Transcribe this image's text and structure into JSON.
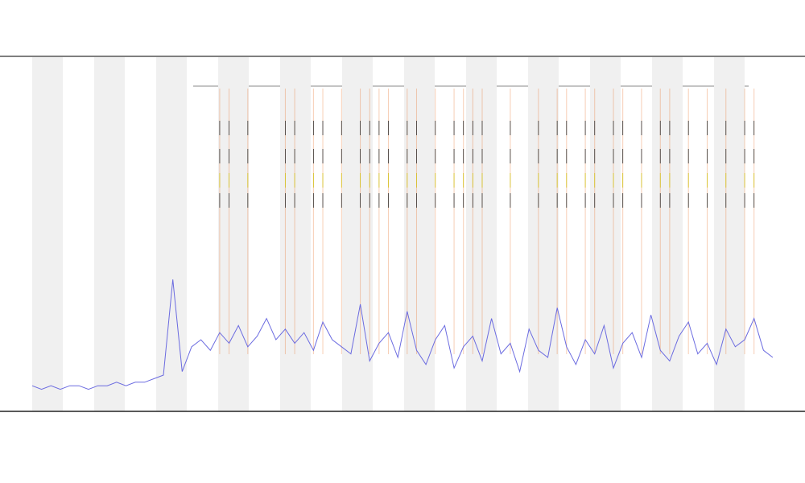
{
  "chart_data": {
    "type": "line",
    "x": [
      0,
      1,
      2,
      3,
      4,
      5,
      6,
      7,
      8,
      9,
      10,
      11,
      12,
      13,
      14,
      15,
      16,
      17,
      18,
      19,
      20,
      21,
      22,
      23,
      24,
      25,
      26,
      27,
      28,
      29,
      30,
      31,
      32,
      33,
      34,
      35,
      36,
      37,
      38,
      39,
      40,
      41,
      42,
      43,
      44,
      45,
      46,
      47,
      48,
      49,
      50,
      51,
      52,
      53,
      54,
      55,
      56,
      57,
      58,
      59,
      60,
      61,
      62,
      63,
      64,
      65,
      66,
      67,
      68,
      69,
      70,
      71,
      72,
      73,
      74,
      75,
      76,
      77,
      78,
      79
    ],
    "series": [
      {
        "color": "#6b6be0",
        "values": [
          7,
          6,
          7,
          6,
          7,
          7,
          6,
          7,
          7,
          8,
          7,
          8,
          8,
          9,
          10,
          37,
          11,
          18,
          20,
          17,
          22,
          19,
          24,
          18,
          21,
          26,
          20,
          23,
          19,
          22,
          17,
          25,
          20,
          18,
          16,
          30,
          14,
          19,
          22,
          15,
          28,
          17,
          13,
          20,
          24,
          12,
          18,
          21,
          14,
          26,
          16,
          19,
          11,
          23,
          17,
          15,
          29,
          18,
          13,
          20,
          16,
          24,
          12,
          19,
          22,
          15,
          27,
          17,
          14,
          21,
          25,
          16,
          19,
          13,
          23,
          18,
          20,
          26,
          17,
          15
        ]
      }
    ],
    "events": {
      "color": "#e8742a",
      "x": [
        20,
        21,
        23,
        27,
        28,
        30,
        31,
        33,
        35,
        36,
        37,
        38,
        40,
        41,
        43,
        45,
        46,
        47,
        48,
        51,
        54,
        56,
        57,
        59,
        60,
        62,
        63,
        65,
        67,
        68,
        70,
        72,
        74,
        76,
        77
      ]
    },
    "xlim": [
      0,
      79
    ],
    "ylim": [
      0,
      100
    ]
  }
}
